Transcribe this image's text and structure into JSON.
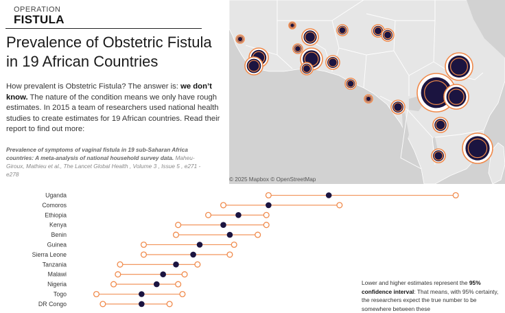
{
  "brand": {
    "line1": "OPERATION",
    "line2": "FISTULA"
  },
  "title": "Prevalence of Obstetric Fistula in 19 African Countries",
  "intro": {
    "part1": "How prevalent is Obstetric Fistula? The answer is: ",
    "bold": "we don’t know.",
    "part2": " The nature of the condition means we only have rough estimates. In 2015 a team of researchers used national health studies to create estimates for 19 African countries. Read their report to find out more:"
  },
  "citation": {
    "title": "Prevalence of symptoms of vaginal fistula in 19 sub-Saharan Africa countries: A meta-analysis of national household survey data.",
    "rest": " Maheu-Giroux, Mathieu et al., The Lancet Global Health , Volume 3 , Issue 5 , e271 - e278"
  },
  "map": {
    "credit": "© 2025 Mapbox  © OpenStreetMap"
  },
  "colors": {
    "point": "#1b1440",
    "interval": "#f08a4b",
    "land": "#e4e4e4",
    "water": "#d0d0d0"
  },
  "chart_data": {
    "type": "dot-interval",
    "categories": [
      "Uganda",
      "Comoros",
      "Ethiopia",
      "Kenya",
      "Benin",
      "Guinea",
      "Sierra Leone",
      "Tanzania",
      "Malawi",
      "Nigeria",
      "Togo",
      "DR Congo"
    ],
    "series": [
      {
        "name": "estimate",
        "values": [
          3.8,
          1.0,
          -0.4,
          -1.1,
          -0.8,
          -2.2,
          -2.5,
          -3.3,
          -3.9,
          -4.2,
          -4.9,
          -4.9
        ]
      },
      {
        "name": "lower",
        "values": [
          1.0,
          -1.1,
          -1.8,
          -3.2,
          -3.3,
          -4.8,
          -4.8,
          -5.9,
          -6.0,
          -6.2,
          -7.0,
          -6.7
        ]
      },
      {
        "name": "upper",
        "values": [
          9.7,
          4.3,
          0.9,
          0.9,
          0.5,
          -0.6,
          -0.8,
          -2.3,
          -2.9,
          -3.2,
          -3.0,
          -3.6
        ]
      }
    ]
  },
  "chart_note": {
    "part1": "Lower and higher estimates represent the ",
    "bold": "95% confidence interval",
    "part2": ": That means, with 95% certainty, the researchers expect the true number to be somewhere between these"
  }
}
